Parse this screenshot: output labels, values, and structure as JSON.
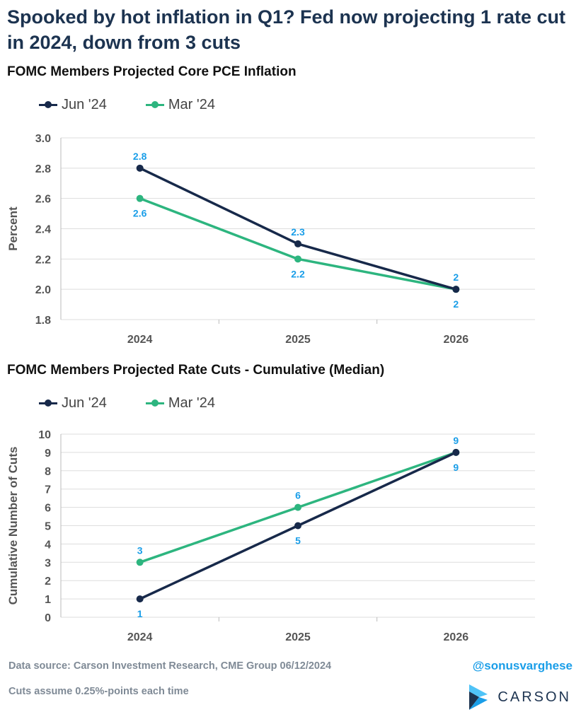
{
  "headline": "Spooked by hot inflation in Q1? Fed now projecting 1 rate cut in 2024, down from 3 cuts",
  "colors": {
    "jun": "#17294a",
    "mar": "#2db57f",
    "label": "#1a9ee8",
    "grid": "#dddddd",
    "axis_text": "#555555"
  },
  "chart_data": [
    {
      "type": "line",
      "title": "FOMC Members Projected Core PCE Inflation",
      "ylabel": "Percent",
      "xlabel": "",
      "categories": [
        "2024",
        "2025",
        "2026"
      ],
      "ylim": [
        1.8,
        3.0
      ],
      "yticks": [
        "1.8",
        "2.0",
        "2.2",
        "2.4",
        "2.6",
        "2.8",
        "3.0"
      ],
      "grid": true,
      "legend_position": "top-left",
      "series": [
        {
          "name": "Jun '24",
          "values": [
            2.8,
            2.3,
            2.0
          ],
          "labels": [
            "2.8",
            "2.3",
            "2"
          ],
          "label_side": "above"
        },
        {
          "name": "Mar '24",
          "values": [
            2.6,
            2.2,
            2.0
          ],
          "labels": [
            "2.6",
            "2.2",
            "2"
          ],
          "label_side": "below"
        }
      ]
    },
    {
      "type": "line",
      "title": "FOMC Members Projected Rate Cuts - Cumulative (Median)",
      "ylabel": "Cumulative Number of Cuts",
      "xlabel": "",
      "categories": [
        "2024",
        "2025",
        "2026"
      ],
      "ylim": [
        0,
        10
      ],
      "yticks": [
        "0",
        "1",
        "2",
        "3",
        "4",
        "5",
        "6",
        "7",
        "8",
        "9",
        "10"
      ],
      "grid": true,
      "legend_position": "top-left",
      "series": [
        {
          "name": "Jun '24",
          "values": [
            1,
            5,
            9
          ],
          "labels": [
            "1",
            "5",
            "9"
          ],
          "label_side": "below"
        },
        {
          "name": "Mar '24",
          "values": [
            3,
            6,
            9
          ],
          "labels": [
            "3",
            "6",
            "9"
          ],
          "label_side": "above"
        }
      ]
    }
  ],
  "footer": {
    "source": "Data source: Carson Investment Research, CME Group    06/12/2024",
    "note": "Cuts assume 0.25%-points each time",
    "handle": "@sonusvarghese",
    "brand": "CARSON"
  }
}
